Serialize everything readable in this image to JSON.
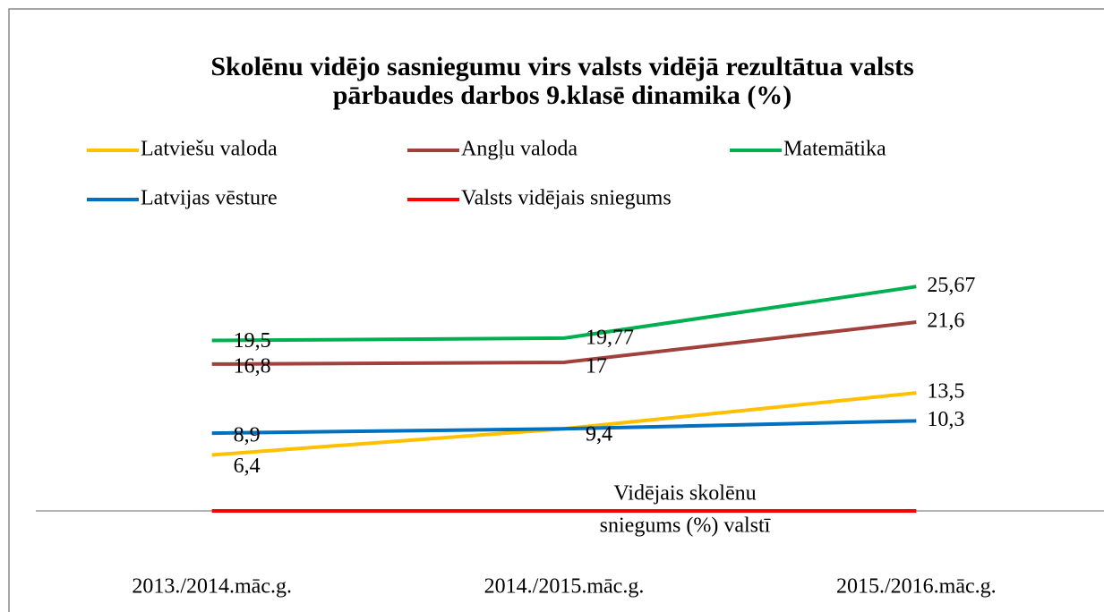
{
  "chart_data": {
    "type": "line",
    "title": [
      "Skolēnu vidējo sasniegumu  virs valsts vidējā rezultātua  valsts",
      "pārbaudes darbos 9.klasē dinamika (%)"
    ],
    "categories": [
      "2013./2014.māc.g.",
      "2014./2015.māc.g.",
      "2015./2016.māc.g."
    ],
    "series": [
      {
        "name": "Latviešu valoda",
        "color": "#ffc000",
        "values": [
          6.4,
          9.4,
          13.5
        ],
        "value_labels": [
          "6,4",
          "9,4",
          "13,5"
        ]
      },
      {
        "name": "Angļu valoda",
        "color": "#a0413c",
        "values": [
          16.8,
          17,
          21.6
        ],
        "value_labels": [
          "16,8",
          "17",
          "21,6"
        ]
      },
      {
        "name": "Matemātika",
        "color": "#00b050",
        "values": [
          19.5,
          19.77,
          25.67
        ],
        "value_labels": [
          "19,5",
          "19,77",
          "25,67"
        ]
      },
      {
        "name": "Latvijas vēsture",
        "color": "#0070c0",
        "values": [
          8.9,
          9.4,
          10.3
        ],
        "value_labels": [
          "8,9",
          "9,4",
          "10,3"
        ]
      },
      {
        "name": "Valsts vidējais sniegums",
        "color": "#ff0000",
        "values": [
          0,
          0,
          0
        ]
      }
    ],
    "annotation": [
      "Vidējais skolēnu",
      "sniegums (%) valstī"
    ],
    "ylim": [
      0,
      30
    ],
    "legend": "top"
  }
}
